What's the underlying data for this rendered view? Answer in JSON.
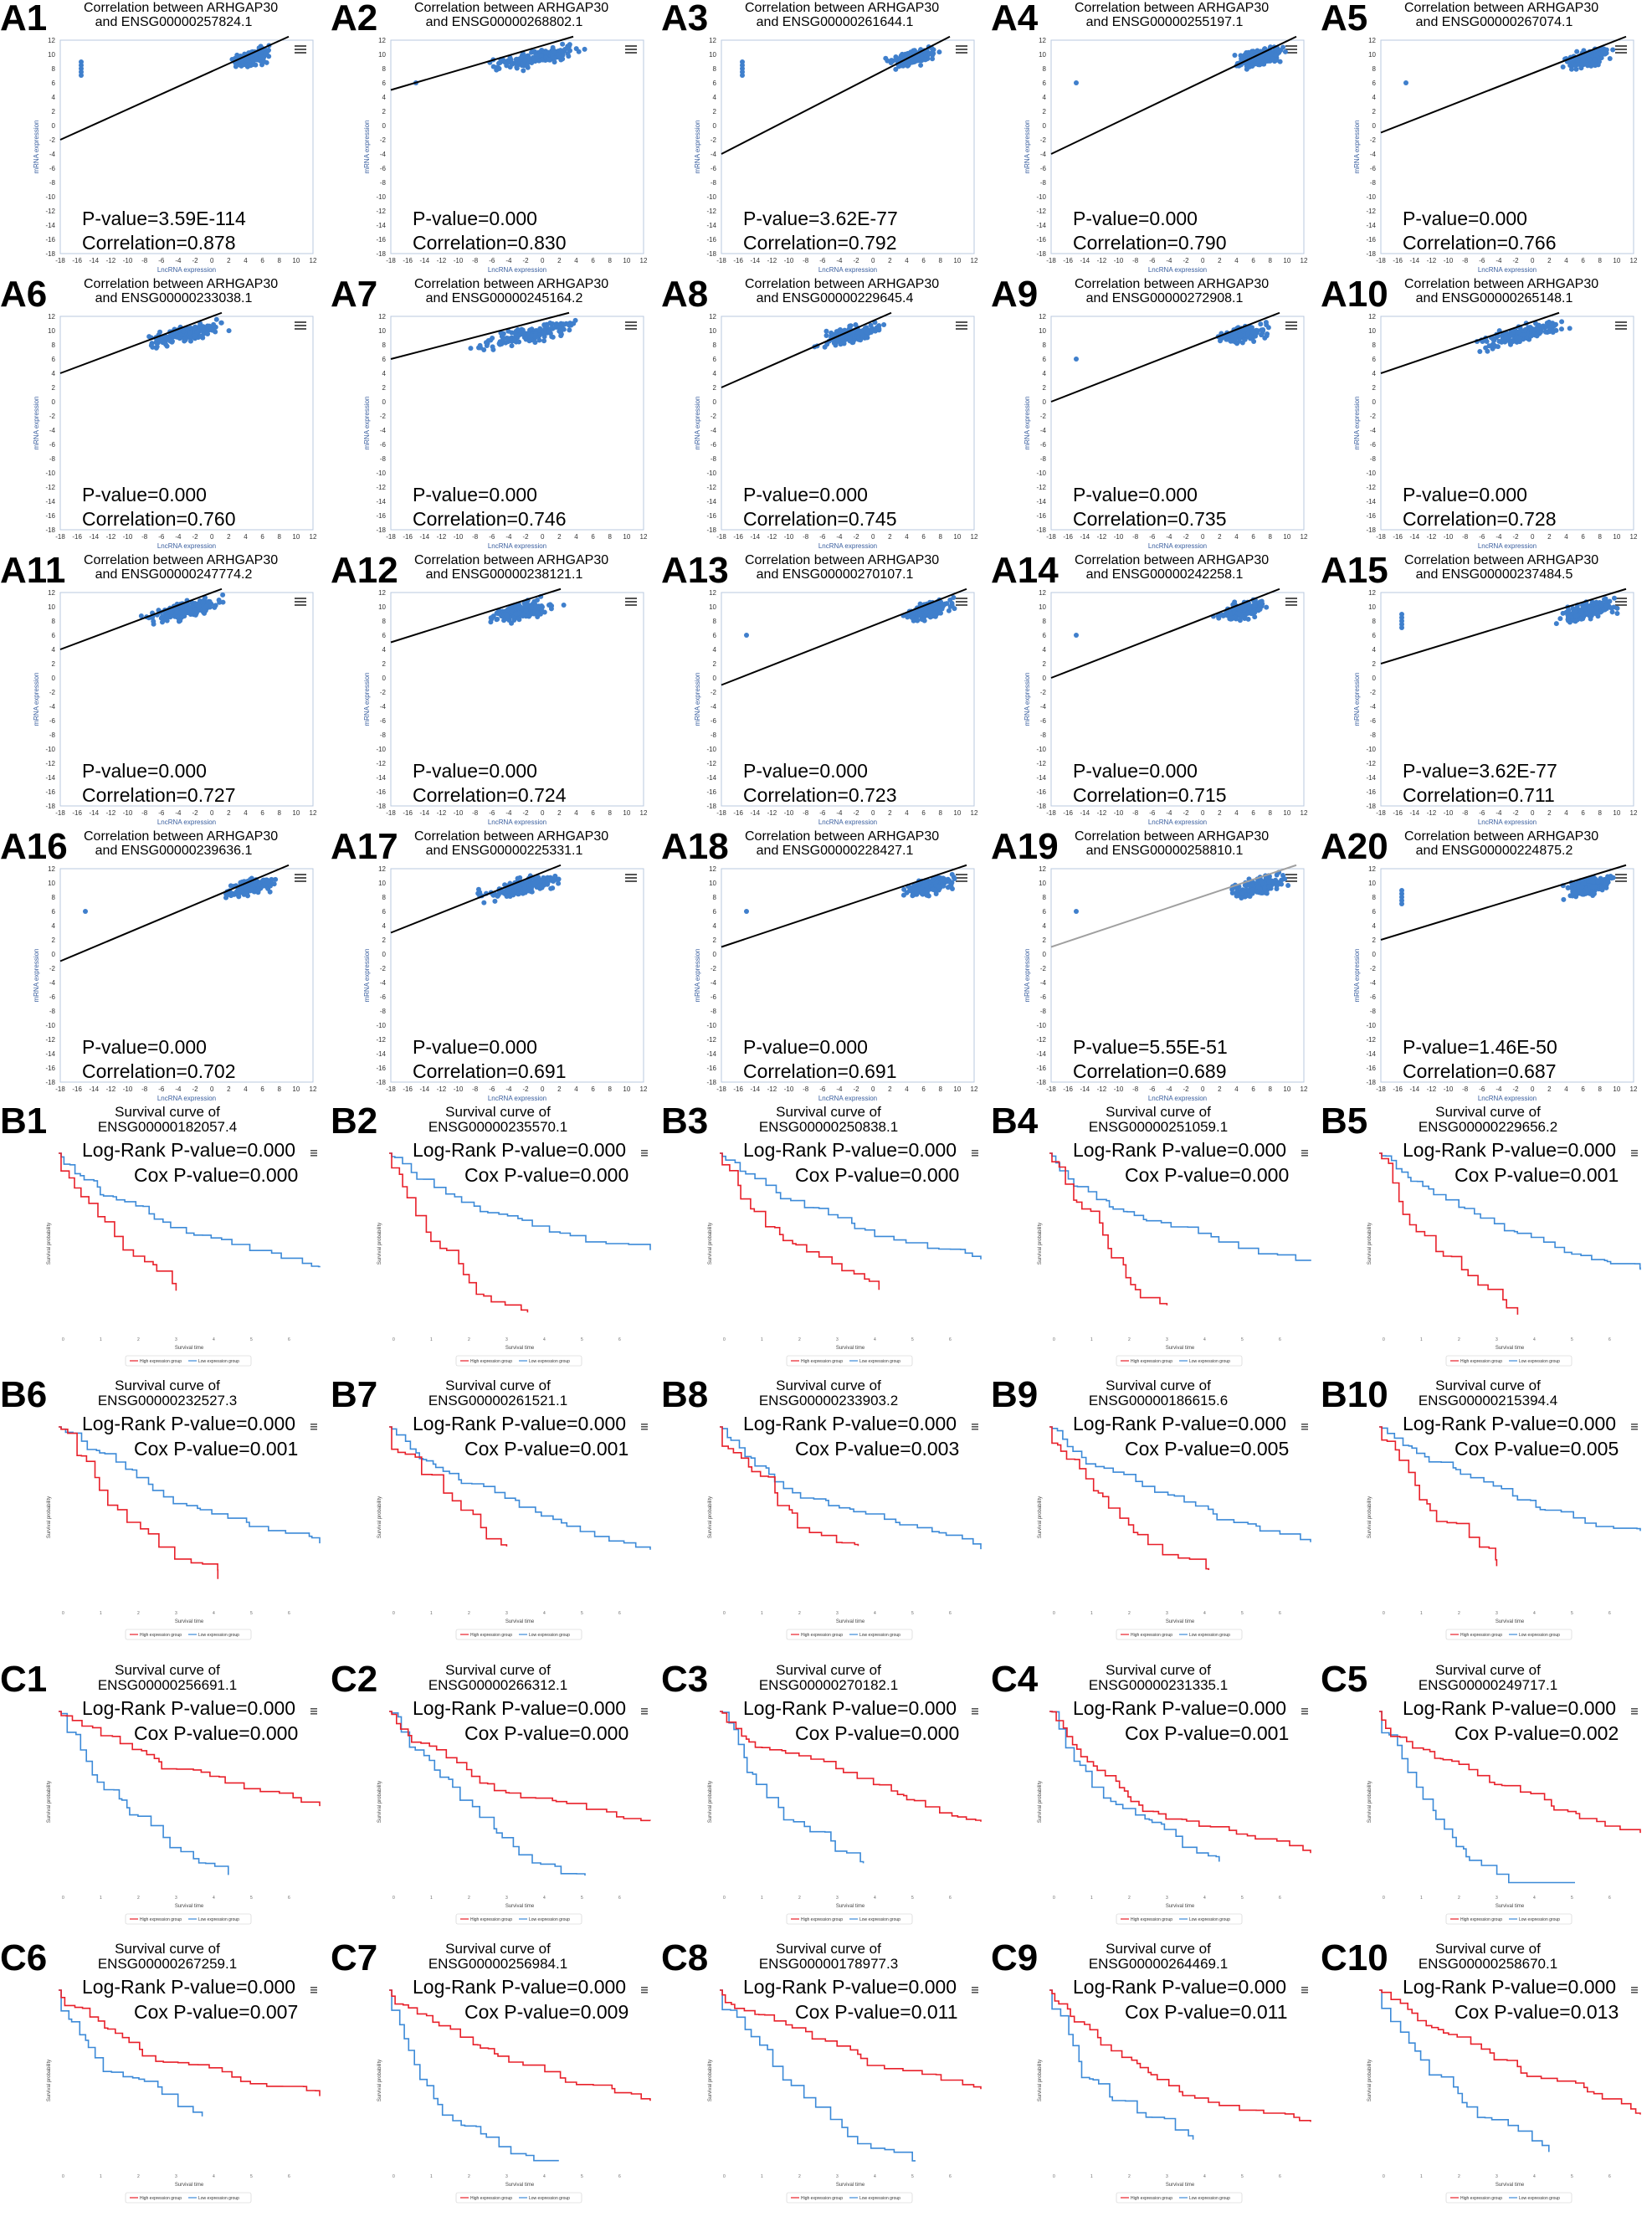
{
  "figure": {
    "corr_title_prefix": "Correlation between ARHGAP30",
    "corr_title_and": "and",
    "surv_title_prefix": "Survival curve of",
    "lncrna_axis_label": "LncRNA expression",
    "mrna_axis_label": "mRNA expression",
    "surv_y_label": "Survival probability",
    "surv_x_label": "Survival time",
    "legend_high": "High expression group",
    "legend_low": "Low expression group",
    "pvalue_prefix": "P-value=",
    "corr_prefix": "Correlation=",
    "logrank_prefix": "Log-Rank P-value=",
    "cox_prefix": "Cox P-value=",
    "colors": {
      "points": "#3f7fcc",
      "line": "#000000",
      "high": "#e8202a",
      "low": "#3c8ad8",
      "frame": "#b9c8df"
    }
  },
  "chart_data": {
    "correlation_panels": [
      {
        "label": "A1",
        "gene": "ENSG00000257824.1",
        "p_value": "3.59E-114",
        "correlation": "0.878"
      },
      {
        "label": "A2",
        "gene": "ENSG00000268802.1",
        "p_value": "0.000",
        "correlation": "0.830"
      },
      {
        "label": "A3",
        "gene": "ENSG00000261644.1",
        "p_value": "3.62E-77",
        "correlation": "0.792"
      },
      {
        "label": "A4",
        "gene": "ENSG00000255197.1",
        "p_value": "0.000",
        "correlation": "0.790"
      },
      {
        "label": "A5",
        "gene": "ENSG00000267074.1",
        "p_value": "0.000",
        "correlation": "0.766"
      },
      {
        "label": "A6",
        "gene": "ENSG00000233038.1",
        "p_value": "0.000",
        "correlation": "0.760"
      },
      {
        "label": "A7",
        "gene": "ENSG00000245164.2",
        "p_value": "0.000",
        "correlation": "0.746"
      },
      {
        "label": "A8",
        "gene": "ENSG00000229645.4",
        "p_value": "0.000",
        "correlation": "0.745"
      },
      {
        "label": "A9",
        "gene": "ENSG00000272908.1",
        "p_value": "0.000",
        "correlation": "0.735"
      },
      {
        "label": "A10",
        "gene": "ENSG00000265148.1",
        "p_value": "0.000",
        "correlation": "0.728"
      },
      {
        "label": "A11",
        "gene": "ENSG00000247774.2",
        "p_value": "0.000",
        "correlation": "0.727"
      },
      {
        "label": "A12",
        "gene": "ENSG00000238121.1",
        "p_value": "0.000",
        "correlation": "0.724"
      },
      {
        "label": "A13",
        "gene": "ENSG00000270107.1",
        "p_value": "0.000",
        "correlation": "0.723"
      },
      {
        "label": "A14",
        "gene": "ENSG00000242258.1",
        "p_value": "0.000",
        "correlation": "0.715"
      },
      {
        "label": "A15",
        "gene": "ENSG00000237484.5",
        "p_value": "3.62E-77",
        "correlation": "0.711"
      },
      {
        "label": "A16",
        "gene": "ENSG00000239636.1",
        "p_value": "0.000",
        "correlation": "0.702"
      },
      {
        "label": "A17",
        "gene": "ENSG00000225331.1",
        "p_value": "0.000",
        "correlation": "0.691"
      },
      {
        "label": "A18",
        "gene": "ENSG00000228427.1",
        "p_value": "0.000",
        "correlation": "0.691"
      },
      {
        "label": "A19",
        "gene": "ENSG00000258810.1",
        "p_value": "5.55E-51",
        "correlation": "0.689"
      },
      {
        "label": "A20",
        "gene": "ENSG00000224875.2",
        "p_value": "1.46E-50",
        "correlation": "0.687"
      }
    ],
    "survival_panels": [
      {
        "label": "B1",
        "gene": "ENSG00000182057.4",
        "logrank_p": "0.000",
        "cox_p": "0.000"
      },
      {
        "label": "B2",
        "gene": "ENSG00000235570.1",
        "logrank_p": "0.000",
        "cox_p": "0.000"
      },
      {
        "label": "B3",
        "gene": "ENSG00000250838.1",
        "logrank_p": "0.000",
        "cox_p": "0.000"
      },
      {
        "label": "B4",
        "gene": "ENSG00000251059.1",
        "logrank_p": "0.000",
        "cox_p": "0.000"
      },
      {
        "label": "B5",
        "gene": "ENSG00000229656.2",
        "logrank_p": "0.000",
        "cox_p": "0.001"
      },
      {
        "label": "B6",
        "gene": "ENSG00000232527.3",
        "logrank_p": "0.000",
        "cox_p": "0.001"
      },
      {
        "label": "B7",
        "gene": "ENSG00000261521.1",
        "logrank_p": "0.000",
        "cox_p": "0.001"
      },
      {
        "label": "B8",
        "gene": "ENSG00000233903.2",
        "logrank_p": "0.000",
        "cox_p": "0.003"
      },
      {
        "label": "B9",
        "gene": "ENSG00000186615.6",
        "logrank_p": "0.000",
        "cox_p": "0.005"
      },
      {
        "label": "B10",
        "gene": "ENSG00000215394.4",
        "logrank_p": "0.000",
        "cox_p": "0.005"
      },
      {
        "label": "C1",
        "gene": "ENSG00000256691.1",
        "logrank_p": "0.000",
        "cox_p": "0.000"
      },
      {
        "label": "C2",
        "gene": "ENSG00000266312.1",
        "logrank_p": "0.000",
        "cox_p": "0.000"
      },
      {
        "label": "C3",
        "gene": "ENSG00000270182.1",
        "logrank_p": "0.000",
        "cox_p": "0.000"
      },
      {
        "label": "C4",
        "gene": "ENSG00000231335.1",
        "logrank_p": "0.000",
        "cox_p": "0.001"
      },
      {
        "label": "C5",
        "gene": "ENSG00000249717.1",
        "logrank_p": "0.000",
        "cox_p": "0.002"
      },
      {
        "label": "C6",
        "gene": "ENSG00000267259.1",
        "logrank_p": "0.000",
        "cox_p": "0.007"
      },
      {
        "label": "C7",
        "gene": "ENSG00000256984.1",
        "logrank_p": "0.000",
        "cox_p": "0.009"
      },
      {
        "label": "C8",
        "gene": "ENSG00000178977.3",
        "logrank_p": "0.000",
        "cox_p": "0.011"
      },
      {
        "label": "C9",
        "gene": "ENSG00000264469.1",
        "logrank_p": "0.000",
        "cox_p": "0.011"
      },
      {
        "label": "C10",
        "gene": "ENSG00000258670.1",
        "logrank_p": "0.000",
        "cox_p": "0.013"
      }
    ],
    "correlation_axes": {
      "y_range": [
        -18,
        12
      ],
      "x_range": [
        -18,
        12
      ]
    }
  }
}
